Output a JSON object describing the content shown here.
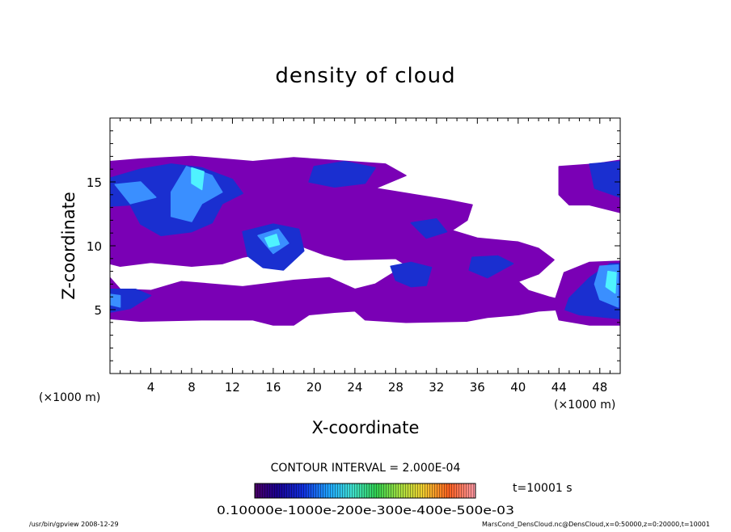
{
  "chart_data": {
    "type": "heatmap",
    "title": "density of cloud",
    "xlabel": "X-coordinate",
    "ylabel": "Z-coordinate",
    "x_unit": "(×1000 m)",
    "y_unit": "(×1000 m)",
    "xlim": [
      0,
      50
    ],
    "ylim": [
      0,
      20
    ],
    "x_ticks": [
      "4",
      "8",
      "12",
      "16",
      "20",
      "24",
      "28",
      "32",
      "36",
      "40",
      "44",
      "48"
    ],
    "y_ticks": [
      "5",
      "10",
      "15"
    ],
    "contour_interval": "CONTOUR INTERVAL = 2.000E-04",
    "time_label": "t=10001 s",
    "colorbar_labels": [
      "0.1000",
      "e-10",
      "e-20",
      "e-30",
      "e-40",
      "e-50",
      "e-03"
    ],
    "colorbar_overlap_text": "0.10000e-1000e-200e-300e-400e-500e-03",
    "colorbar_levels": [
      0.0,
      0.0006
    ],
    "colors": {
      "base": "#7a00b5",
      "mid": "#1a2fd0",
      "high": "#3a8fff",
      "peak": "#4ff2ff"
    },
    "footer_left": "/usr/bin/gpview   2008-12-29",
    "footer_right": "MarsCond_DensCloud.nc@DensCloud,x=0:50000,z=0:20000,t=10001",
    "regions": [
      {
        "level": 1,
        "poly": [
          [
            0,
            16.6
          ],
          [
            3,
            16.8
          ],
          [
            8,
            17
          ],
          [
            14,
            16.6
          ],
          [
            18,
            16.9
          ],
          [
            27,
            16.4
          ],
          [
            29,
            15.5
          ],
          [
            26,
            14.5
          ],
          [
            33,
            13.6
          ],
          [
            35.5,
            13.2
          ],
          [
            35,
            12
          ],
          [
            33.5,
            11.2
          ],
          [
            36,
            10.6
          ],
          [
            40,
            10.3
          ],
          [
            42,
            9.8
          ],
          [
            43.5,
            8.9
          ],
          [
            42,
            7.8
          ],
          [
            40,
            7.2
          ],
          [
            41,
            6.5
          ],
          [
            43,
            6
          ],
          [
            44,
            5.8
          ],
          [
            44,
            5
          ],
          [
            42,
            4.9
          ],
          [
            40,
            4.6
          ],
          [
            37,
            4.4
          ],
          [
            35,
            4.1
          ],
          [
            29,
            4
          ],
          [
            25,
            4.2
          ],
          [
            24,
            4.9
          ],
          [
            22,
            4.8
          ],
          [
            19.5,
            4.6
          ],
          [
            18,
            3.8
          ],
          [
            16,
            3.8
          ],
          [
            14,
            4.2
          ],
          [
            9,
            4.2
          ],
          [
            3,
            4.1
          ],
          [
            0,
            4.3
          ],
          [
            0,
            7.5
          ],
          [
            1,
            6.6
          ],
          [
            4,
            6.5
          ],
          [
            7,
            7.2
          ],
          [
            13,
            6.8
          ],
          [
            18,
            7.3
          ],
          [
            21.5,
            7.5
          ],
          [
            24,
            6.6
          ],
          [
            26,
            7
          ],
          [
            29,
            8.5
          ],
          [
            28,
            9
          ],
          [
            23,
            8.9
          ],
          [
            21,
            9.3
          ],
          [
            18,
            10.2
          ],
          [
            15,
            9.4
          ],
          [
            13,
            9.1
          ],
          [
            11,
            8.6
          ],
          [
            8,
            8.4
          ],
          [
            4,
            8.7
          ],
          [
            1,
            8.4
          ],
          [
            0,
            8.6
          ]
        ]
      },
      {
        "level": 1,
        "poly": [
          [
            44,
            16.2
          ],
          [
            47.5,
            16.4
          ],
          [
            50,
            16.7
          ],
          [
            50,
            12.6
          ],
          [
            47,
            13.2
          ],
          [
            45,
            13.2
          ],
          [
            44,
            14
          ]
        ]
      },
      {
        "level": 1,
        "poly": [
          [
            44.5,
            7.9
          ],
          [
            47,
            8.7
          ],
          [
            50,
            8.8
          ],
          [
            50,
            3.8
          ],
          [
            47,
            3.8
          ],
          [
            44,
            4.2
          ],
          [
            43.5,
            5.5
          ]
        ]
      },
      {
        "level": 2,
        "poly": [
          [
            0,
            15.3
          ],
          [
            3,
            16
          ],
          [
            6,
            16.4
          ],
          [
            9,
            16.1
          ],
          [
            12,
            15.2
          ],
          [
            13,
            14.1
          ],
          [
            11,
            13.3
          ],
          [
            10,
            11.8
          ],
          [
            8,
            11.1
          ],
          [
            5,
            10.8
          ],
          [
            3,
            11.7
          ],
          [
            2,
            13.2
          ],
          [
            0,
            13.1
          ]
        ]
      },
      {
        "level": 2,
        "poly": [
          [
            20,
            16.2
          ],
          [
            23,
            16.6
          ],
          [
            26,
            16.1
          ],
          [
            25,
            14.9
          ],
          [
            22,
            14.6
          ],
          [
            19.5,
            15
          ]
        ]
      },
      {
        "level": 2,
        "poly": [
          [
            13,
            11.1
          ],
          [
            16,
            11.7
          ],
          [
            18.5,
            11.3
          ],
          [
            19,
            9.6
          ],
          [
            17,
            8.1
          ],
          [
            15,
            8.3
          ],
          [
            13.5,
            9.2
          ]
        ]
      },
      {
        "level": 2,
        "poly": [
          [
            27.5,
            8.4
          ],
          [
            29.5,
            8.7
          ],
          [
            31.5,
            8.3
          ],
          [
            31,
            6.9
          ],
          [
            29.5,
            6.8
          ],
          [
            28,
            7.3
          ]
        ]
      },
      {
        "level": 2,
        "poly": [
          [
            29.5,
            11.8
          ],
          [
            32,
            12.1
          ],
          [
            33,
            11.1
          ],
          [
            31,
            10.6
          ]
        ]
      },
      {
        "level": 2,
        "poly": [
          [
            35.5,
            9.1
          ],
          [
            38,
            9.2
          ],
          [
            39.5,
            8.6
          ],
          [
            37,
            7.5
          ],
          [
            35.2,
            8.1
          ]
        ]
      },
      {
        "level": 2,
        "poly": [
          [
            47,
            16.4
          ],
          [
            50,
            16.6
          ],
          [
            50,
            13.8
          ],
          [
            47.5,
            14.5
          ]
        ]
      },
      {
        "level": 2,
        "poly": [
          [
            45,
            5.9
          ],
          [
            47,
            7.5
          ],
          [
            49,
            8.6
          ],
          [
            50,
            8.6
          ],
          [
            50,
            4.3
          ],
          [
            46,
            4.6
          ],
          [
            44.6,
            5
          ]
        ]
      },
      {
        "level": 2,
        "poly": [
          [
            0,
            6.6
          ],
          [
            2.5,
            6.6
          ],
          [
            4,
            6.1
          ],
          [
            2,
            5.1
          ],
          [
            0,
            4.8
          ]
        ]
      },
      {
        "level": 3,
        "poly": [
          [
            7.5,
            16.2
          ],
          [
            10,
            15.5
          ],
          [
            11,
            14.2
          ],
          [
            9,
            13.3
          ],
          [
            8,
            11.9
          ],
          [
            6,
            12.3
          ],
          [
            6,
            14.2
          ]
        ]
      },
      {
        "level": 3,
        "poly": [
          [
            0.5,
            14.8
          ],
          [
            3,
            15
          ],
          [
            4.5,
            13.8
          ],
          [
            2,
            13.3
          ]
        ]
      },
      {
        "level": 3,
        "poly": [
          [
            14.5,
            10.8
          ],
          [
            16.5,
            11.3
          ],
          [
            17.5,
            10.2
          ],
          [
            16,
            9.4
          ]
        ]
      },
      {
        "level": 3,
        "poly": [
          [
            48,
            8.4
          ],
          [
            49.8,
            8.5
          ],
          [
            49.8,
            5.2
          ],
          [
            48,
            5.8
          ],
          [
            47.5,
            7
          ]
        ]
      },
      {
        "level": 3,
        "poly": [
          [
            0,
            6.2
          ],
          [
            1,
            6.1
          ],
          [
            1,
            5.2
          ],
          [
            0,
            5.4
          ]
        ]
      },
      {
        "level": 4,
        "poly": [
          [
            8,
            16.1
          ],
          [
            9.2,
            15.8
          ],
          [
            9,
            14.4
          ],
          [
            8,
            14.9
          ]
        ]
      },
      {
        "level": 4,
        "poly": [
          [
            15.2,
            10.6
          ],
          [
            16.3,
            10.9
          ],
          [
            16.6,
            10.1
          ],
          [
            15.6,
            9.9
          ]
        ]
      },
      {
        "level": 4,
        "poly": [
          [
            48.8,
            8
          ],
          [
            49.6,
            7.9
          ],
          [
            49.5,
            6.3
          ],
          [
            48.6,
            6.8
          ]
        ]
      }
    ]
  }
}
